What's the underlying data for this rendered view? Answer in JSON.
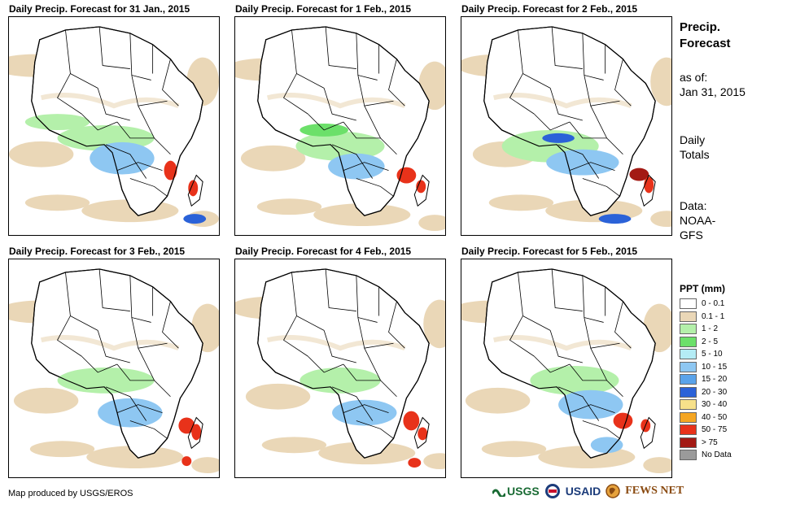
{
  "panels": [
    {
      "title": "Daily Precip. Forecast for 31 Jan., 2015"
    },
    {
      "title": "Daily Precip. Forecast for 1 Feb., 2015"
    },
    {
      "title": "Daily Precip. Forecast for 2 Feb., 2015"
    },
    {
      "title": "Daily Precip. Forecast for 3 Feb., 2015"
    },
    {
      "title": "Daily Precip. Forecast for 4 Feb., 2015"
    },
    {
      "title": "Daily Precip. Forecast for 5 Feb., 2015"
    }
  ],
  "sidebar": {
    "title_line1": "Precip.",
    "title_line2": "Forecast",
    "asof_label": "as of:",
    "asof_date": "Jan 31, 2015",
    "totals_line1": "Daily",
    "totals_line2": "Totals",
    "data_line1": "Data:",
    "data_line2": "NOAA-",
    "data_line3": "GFS"
  },
  "legend": {
    "title": "PPT (mm)",
    "items": [
      {
        "label": "0 - 0.1",
        "color": "#ffffff"
      },
      {
        "label": "0.1 - 1",
        "color": "#ead7b7"
      },
      {
        "label": "1 - 2",
        "color": "#b4f0aa"
      },
      {
        "label": "2 - 5",
        "color": "#6ce06a"
      },
      {
        "label": "5 - 10",
        "color": "#b4ecf5"
      },
      {
        "label": "10 - 15",
        "color": "#8ec7f2"
      },
      {
        "label": "15 - 20",
        "color": "#5aa3ea"
      },
      {
        "label": "20 - 30",
        "color": "#2b62d8"
      },
      {
        "label": "30 - 40",
        "color": "#f7e18a"
      },
      {
        "label": "40 - 50",
        "color": "#f5a623"
      },
      {
        "label": "50 - 75",
        "color": "#e8321a"
      },
      {
        "label": "> 75",
        "color": "#a31a14"
      },
      {
        "label": "No Data",
        "color": "#9a9a9a"
      }
    ]
  },
  "footer": {
    "credit": "Map produced by USGS/EROS",
    "logo_usgs": "USGS",
    "logo_usaid": "USAID",
    "logo_fews": "FEWS NET"
  },
  "colors": {
    "sand": "#ead7b7",
    "light_green": "#b4f0aa",
    "green": "#6ce06a",
    "light_blue": "#8ec7f2",
    "blue": "#2b62d8",
    "red": "#e8321a",
    "dark_red": "#a31a14",
    "border": "#000000"
  }
}
